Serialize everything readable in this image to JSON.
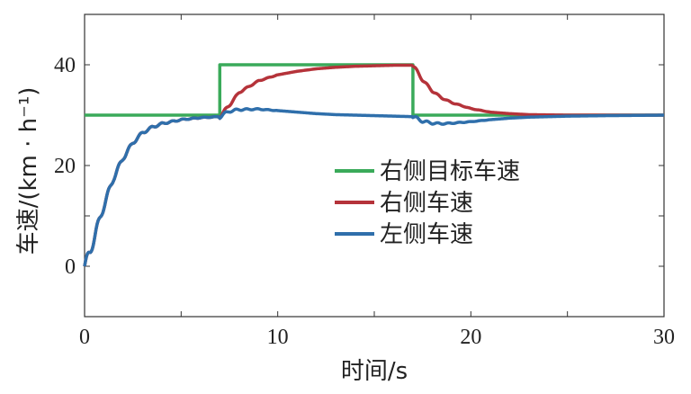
{
  "chart_data": {
    "type": "line",
    "xlabel": "时间/s",
    "ylabel": "车速/(km · h⁻¹)",
    "xlim": [
      0,
      30
    ],
    "ylim": [
      -10,
      50
    ],
    "x_ticks": [
      0,
      10,
      20,
      30
    ],
    "x_tick_labels": [
      "0",
      "10",
      "20",
      "30"
    ],
    "y_ticks": [
      0,
      20,
      40
    ],
    "y_tick_labels": [
      "0",
      "20",
      "40"
    ],
    "grid": false,
    "legend_position": "center-right",
    "series": [
      {
        "name": "右侧目标车速",
        "color": "#3aaa5a",
        "x": [
          0,
          7,
          7,
          17,
          17,
          30
        ],
        "y": [
          30,
          30,
          40,
          40,
          30,
          30
        ]
      },
      {
        "name": "右侧车速",
        "color": "#b5333a",
        "x": [
          0,
          0.3,
          0.6,
          1.0,
          1.5,
          2.0,
          2.5,
          3.0,
          3.5,
          4.0,
          5.0,
          6.0,
          7.0,
          7.5,
          8.0,
          9.0,
          10.0,
          11.0,
          12.0,
          13.0,
          14.0,
          15.0,
          16.0,
          17.0,
          17.5,
          18.0,
          18.5,
          19.0,
          20.0,
          21.0,
          22.0,
          23.0,
          25.0,
          27.0,
          30.0
        ],
        "y": [
          0,
          3,
          7,
          12,
          17.5,
          21.5,
          24.5,
          26.5,
          27.6,
          28.3,
          29.1,
          29.5,
          29.7,
          32,
          34.5,
          36.8,
          38.0,
          38.7,
          39.2,
          39.5,
          39.7,
          39.8,
          39.9,
          39.9,
          37,
          34.8,
          33.4,
          32.5,
          31.3,
          30.6,
          30.3,
          30.1,
          30.0,
          30.0,
          30.0
        ]
      },
      {
        "name": "左侧车速",
        "color": "#2f6fab",
        "x": [
          0,
          0.3,
          0.6,
          1.0,
          1.5,
          2.0,
          2.5,
          3.0,
          3.5,
          4.0,
          5.0,
          6.0,
          7.0,
          7.5,
          8.0,
          9.0,
          10.0,
          11.0,
          12.0,
          13.0,
          14.0,
          15.0,
          16.0,
          17.0,
          17.5,
          18.0,
          18.5,
          19.0,
          20.0,
          21.0,
          22.0,
          23.0,
          25.0,
          27.0,
          30.0
        ],
        "y": [
          0,
          3,
          7,
          12,
          17.5,
          21.5,
          24.5,
          26.5,
          27.6,
          28.3,
          29.1,
          29.5,
          29.7,
          30.8,
          31.1,
          31.2,
          30.9,
          30.6,
          30.3,
          30.1,
          30.0,
          29.9,
          29.8,
          29.7,
          28.8,
          28.4,
          28.3,
          28.4,
          28.7,
          29.1,
          29.4,
          29.6,
          29.8,
          29.9,
          30.0
        ]
      }
    ]
  }
}
